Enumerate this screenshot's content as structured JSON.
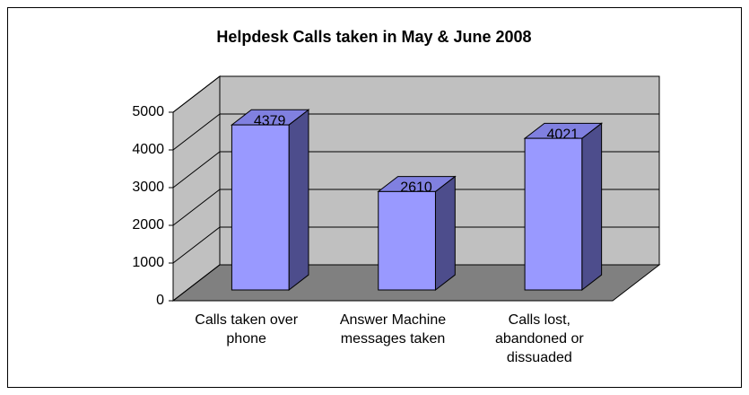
{
  "chart_data": {
    "type": "bar3d",
    "title": "Helpdesk Calls taken in May & June 2008",
    "categories": [
      "Calls taken over phone",
      "Answer Machine messages taken",
      "Calls lost, abandoned or dissuaded"
    ],
    "values": [
      4379,
      2610,
      4021
    ],
    "color": "#9999ff",
    "ylim": [
      0,
      5000
    ],
    "yticks": [
      0,
      1000,
      2000,
      3000,
      4000,
      5000
    ],
    "grid": true
  }
}
